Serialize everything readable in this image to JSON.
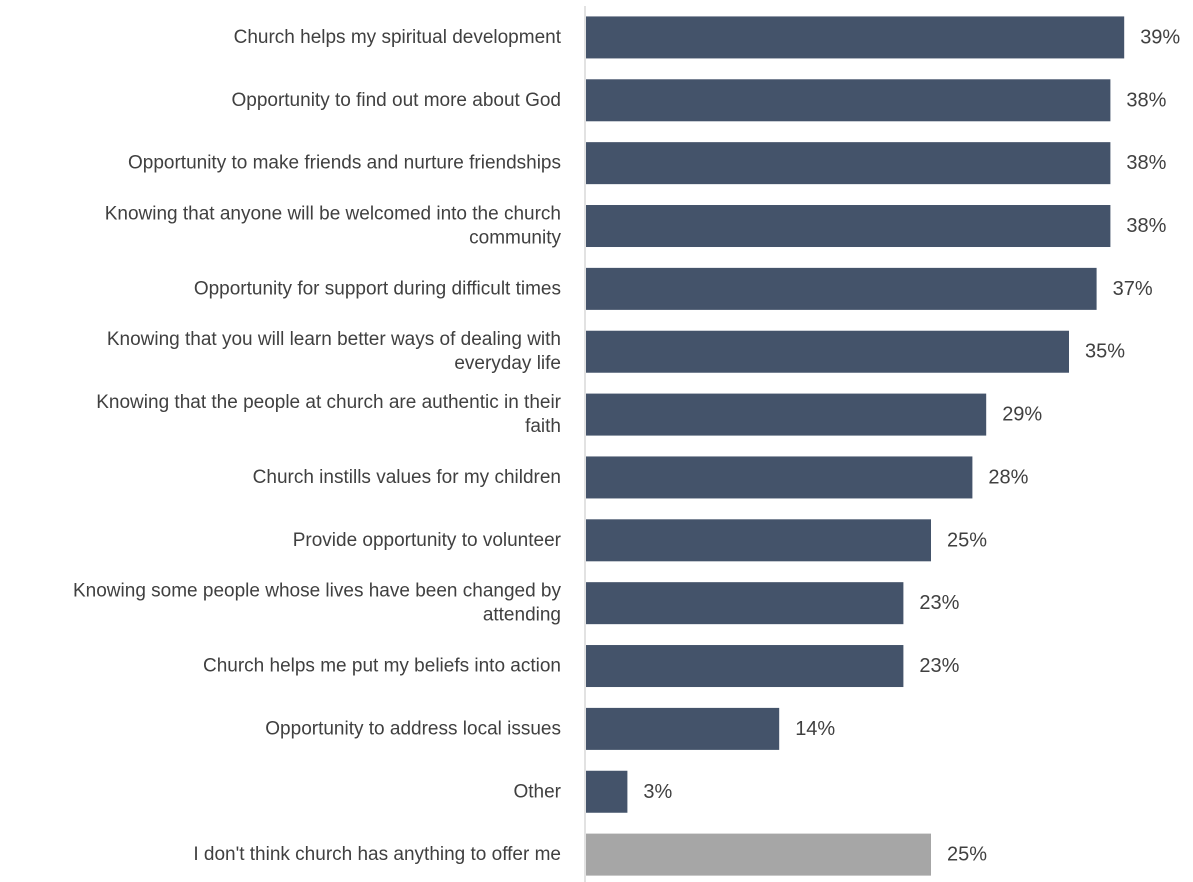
{
  "chart_data": {
    "type": "bar",
    "orientation": "horizontal",
    "title": "",
    "xlabel": "",
    "ylabel": "",
    "value_suffix": "%",
    "xlim": [
      0,
      40
    ],
    "grid": false,
    "legend": "none",
    "colors": {
      "primary": "#44536a",
      "secondary": "#a6a6a6",
      "label": "#404040",
      "axis": "#d9d9d9"
    },
    "categories": [
      [
        "Church helps my spiritual development"
      ],
      [
        "Opportunity to find out more about God"
      ],
      [
        "Opportunity to make friends and nurture friendships"
      ],
      [
        "Knowing that anyone will be welcomed into the church",
        "community"
      ],
      [
        "Opportunity for support during difficult times"
      ],
      [
        "Knowing that you will learn better ways of dealing with",
        "everyday life"
      ],
      [
        "Knowing that the people at church are authentic in their",
        "faith"
      ],
      [
        "Church instills values for my children"
      ],
      [
        "Provide opportunity to volunteer"
      ],
      [
        "Knowing some people whose lives have been changed by",
        "attending"
      ],
      [
        "Church helps me put my beliefs into action"
      ],
      [
        "Opportunity to address local issues"
      ],
      [
        "Other"
      ],
      [
        "I don't think church has anything to offer me"
      ]
    ],
    "values": [
      39,
      38,
      38,
      38,
      37,
      35,
      29,
      28,
      25,
      23,
      23,
      14,
      3,
      25
    ],
    "value_labels": [
      "39%",
      "38%",
      "38%",
      "38%",
      "37%",
      "35%",
      "29%",
      "28%",
      "25%",
      "23%",
      "23%",
      "14%",
      "3%",
      "25%"
    ],
    "bar_colors": [
      "primary",
      "primary",
      "primary",
      "primary",
      "primary",
      "primary",
      "primary",
      "primary",
      "primary",
      "primary",
      "primary",
      "primary",
      "primary",
      "secondary"
    ]
  }
}
